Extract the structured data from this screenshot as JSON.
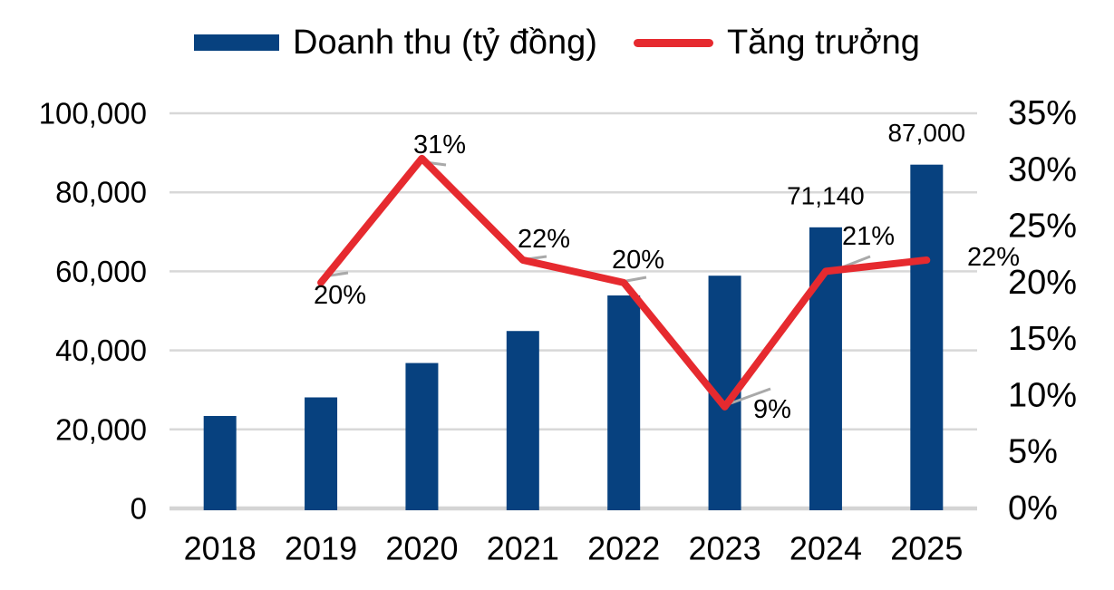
{
  "legend": {
    "revenue_label": "Doanh thu (tỷ đồng)",
    "growth_label": "Tăng trưởng"
  },
  "colors": {
    "bar": "#07417F",
    "line": "#E62A2F",
    "leader": "#A9A9A9",
    "grid": "#D8D8D8",
    "baseline": "#D4D4D4",
    "text": "#000000"
  },
  "chart_data": {
    "type": "combo-bar-line",
    "categories": [
      "2018",
      "2019",
      "2020",
      "2021",
      "2022",
      "2023",
      "2024",
      "2025"
    ],
    "series": [
      {
        "name": "Doanh thu (tỷ đồng)",
        "type": "bar",
        "axis": "left",
        "unit": "tỷ đồng",
        "values": [
          23400,
          28100,
          36800,
          44900,
          53900,
          58900,
          71140,
          87000
        ],
        "data_labels": [
          null,
          null,
          null,
          null,
          null,
          null,
          "71,140",
          "87,000"
        ]
      },
      {
        "name": "Tăng trưởng",
        "type": "line",
        "axis": "right",
        "unit": "%",
        "values": [
          null,
          20,
          31,
          22,
          20,
          9,
          21,
          22
        ],
        "data_labels": [
          null,
          "20%",
          "31%",
          "22%",
          "20%",
          "9%",
          "21%",
          "22%"
        ]
      }
    ],
    "left_axis": {
      "min": 0,
      "max": 100000,
      "tick_step": 20000,
      "tick_labels": [
        "0",
        "20,000",
        "40,000",
        "60,000",
        "80,000",
        "100,000"
      ]
    },
    "right_axis": {
      "min": 0,
      "max": 35,
      "tick_step": 5,
      "tick_labels": [
        "0%",
        "5%",
        "10%",
        "15%",
        "20%",
        "25%",
        "30%",
        "35%"
      ]
    },
    "grid": "horizontal",
    "legend_position": "top-center"
  }
}
